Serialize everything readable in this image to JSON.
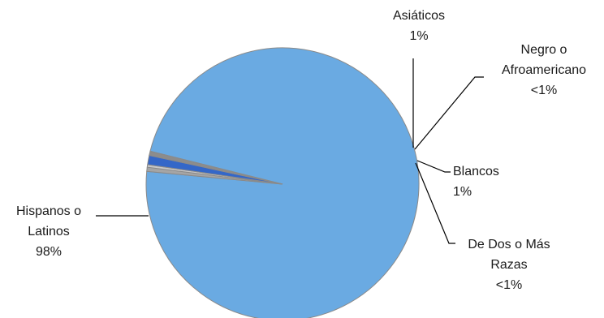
{
  "chart_data": {
    "type": "pie",
    "title": "",
    "legend": "none",
    "slices": [
      {
        "label_lines": [
          "Hispanos o",
          "Latinos"
        ],
        "value": 97.6,
        "value_label": "98%",
        "color": "#6aaae2"
      },
      {
        "label_lines": [
          "Asiáticos"
        ],
        "value": 0.5,
        "value_label": "1%",
        "color": "#a5a5a5"
      },
      {
        "label_lines": [
          "Negro o",
          "Afroamericano"
        ],
        "value": 0.3,
        "value_label": "<1%",
        "color": "#c8c8c8"
      },
      {
        "label_lines": [
          "Blancos"
        ],
        "value": 1.1,
        "value_label": "1%",
        "color": "#3467c8"
      },
      {
        "label_lines": [
          "De Dos o Más",
          "Razas"
        ],
        "value": 0.5,
        "value_label": "<1%",
        "color": "#8c8c8c"
      }
    ]
  }
}
